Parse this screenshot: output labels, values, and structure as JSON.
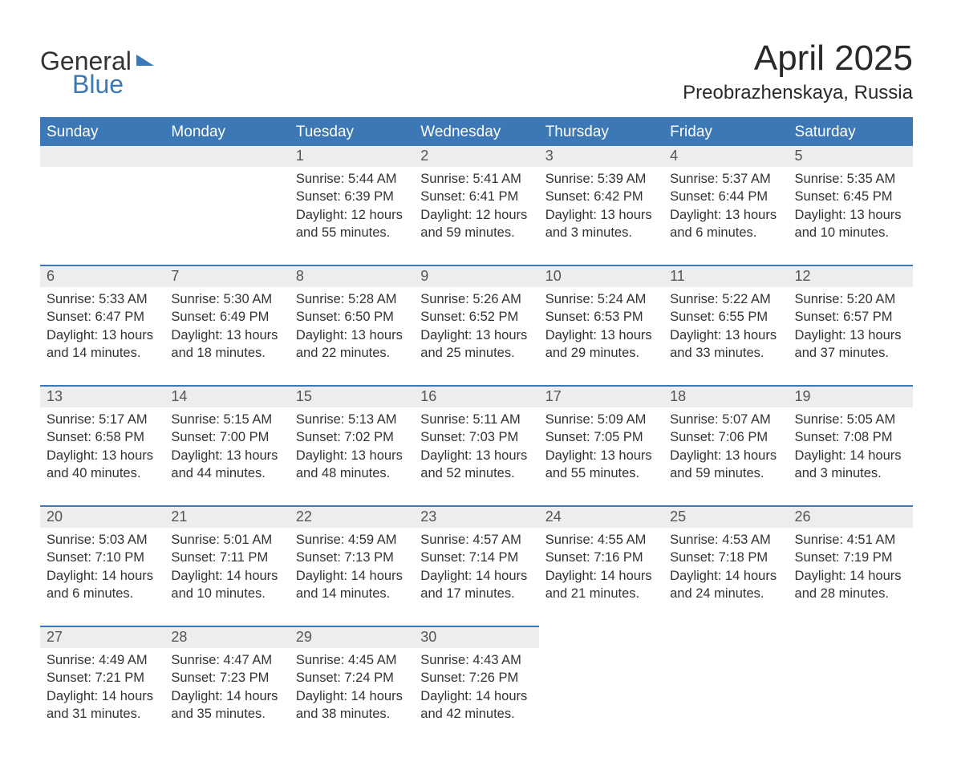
{
  "brand": {
    "word1": "General",
    "word2": "Blue"
  },
  "title": "April 2025",
  "location": "Preobrazhenskaya, Russia",
  "colors": {
    "header_bg": "#3b78b5",
    "header_text": "#ffffff",
    "daynum_bg": "#ededed",
    "row_border": "#3b78b5",
    "body_text": "#333333",
    "page_bg": "#ffffff"
  },
  "typography": {
    "title_fontsize": 44,
    "location_fontsize": 24,
    "header_fontsize": 19,
    "daynum_fontsize": 18,
    "body_fontsize": 16.5
  },
  "days_of_week": [
    "Sunday",
    "Monday",
    "Tuesday",
    "Wednesday",
    "Thursday",
    "Friday",
    "Saturday"
  ],
  "weeks": [
    [
      null,
      null,
      {
        "n": "1",
        "sr": "5:44 AM",
        "ss": "6:39 PM",
        "dl": "12 hours and 55 minutes."
      },
      {
        "n": "2",
        "sr": "5:41 AM",
        "ss": "6:41 PM",
        "dl": "12 hours and 59 minutes."
      },
      {
        "n": "3",
        "sr": "5:39 AM",
        "ss": "6:42 PM",
        "dl": "13 hours and 3 minutes."
      },
      {
        "n": "4",
        "sr": "5:37 AM",
        "ss": "6:44 PM",
        "dl": "13 hours and 6 minutes."
      },
      {
        "n": "5",
        "sr": "5:35 AM",
        "ss": "6:45 PM",
        "dl": "13 hours and 10 minutes."
      }
    ],
    [
      {
        "n": "6",
        "sr": "5:33 AM",
        "ss": "6:47 PM",
        "dl": "13 hours and 14 minutes."
      },
      {
        "n": "7",
        "sr": "5:30 AM",
        "ss": "6:49 PM",
        "dl": "13 hours and 18 minutes."
      },
      {
        "n": "8",
        "sr": "5:28 AM",
        "ss": "6:50 PM",
        "dl": "13 hours and 22 minutes."
      },
      {
        "n": "9",
        "sr": "5:26 AM",
        "ss": "6:52 PM",
        "dl": "13 hours and 25 minutes."
      },
      {
        "n": "10",
        "sr": "5:24 AM",
        "ss": "6:53 PM",
        "dl": "13 hours and 29 minutes."
      },
      {
        "n": "11",
        "sr": "5:22 AM",
        "ss": "6:55 PM",
        "dl": "13 hours and 33 minutes."
      },
      {
        "n": "12",
        "sr": "5:20 AM",
        "ss": "6:57 PM",
        "dl": "13 hours and 37 minutes."
      }
    ],
    [
      {
        "n": "13",
        "sr": "5:17 AM",
        "ss": "6:58 PM",
        "dl": "13 hours and 40 minutes."
      },
      {
        "n": "14",
        "sr": "5:15 AM",
        "ss": "7:00 PM",
        "dl": "13 hours and 44 minutes."
      },
      {
        "n": "15",
        "sr": "5:13 AM",
        "ss": "7:02 PM",
        "dl": "13 hours and 48 minutes."
      },
      {
        "n": "16",
        "sr": "5:11 AM",
        "ss": "7:03 PM",
        "dl": "13 hours and 52 minutes."
      },
      {
        "n": "17",
        "sr": "5:09 AM",
        "ss": "7:05 PM",
        "dl": "13 hours and 55 minutes."
      },
      {
        "n": "18",
        "sr": "5:07 AM",
        "ss": "7:06 PM",
        "dl": "13 hours and 59 minutes."
      },
      {
        "n": "19",
        "sr": "5:05 AM",
        "ss": "7:08 PM",
        "dl": "14 hours and 3 minutes."
      }
    ],
    [
      {
        "n": "20",
        "sr": "5:03 AM",
        "ss": "7:10 PM",
        "dl": "14 hours and 6 minutes."
      },
      {
        "n": "21",
        "sr": "5:01 AM",
        "ss": "7:11 PM",
        "dl": "14 hours and 10 minutes."
      },
      {
        "n": "22",
        "sr": "4:59 AM",
        "ss": "7:13 PM",
        "dl": "14 hours and 14 minutes."
      },
      {
        "n": "23",
        "sr": "4:57 AM",
        "ss": "7:14 PM",
        "dl": "14 hours and 17 minutes."
      },
      {
        "n": "24",
        "sr": "4:55 AM",
        "ss": "7:16 PM",
        "dl": "14 hours and 21 minutes."
      },
      {
        "n": "25",
        "sr": "4:53 AM",
        "ss": "7:18 PM",
        "dl": "14 hours and 24 minutes."
      },
      {
        "n": "26",
        "sr": "4:51 AM",
        "ss": "7:19 PM",
        "dl": "14 hours and 28 minutes."
      }
    ],
    [
      {
        "n": "27",
        "sr": "4:49 AM",
        "ss": "7:21 PM",
        "dl": "14 hours and 31 minutes."
      },
      {
        "n": "28",
        "sr": "4:47 AM",
        "ss": "7:23 PM",
        "dl": "14 hours and 35 minutes."
      },
      {
        "n": "29",
        "sr": "4:45 AM",
        "ss": "7:24 PM",
        "dl": "14 hours and 38 minutes."
      },
      {
        "n": "30",
        "sr": "4:43 AM",
        "ss": "7:26 PM",
        "dl": "14 hours and 42 minutes."
      },
      null,
      null,
      null
    ]
  ],
  "labels": {
    "sunrise": "Sunrise: ",
    "sunset": "Sunset: ",
    "daylight": "Daylight: "
  }
}
